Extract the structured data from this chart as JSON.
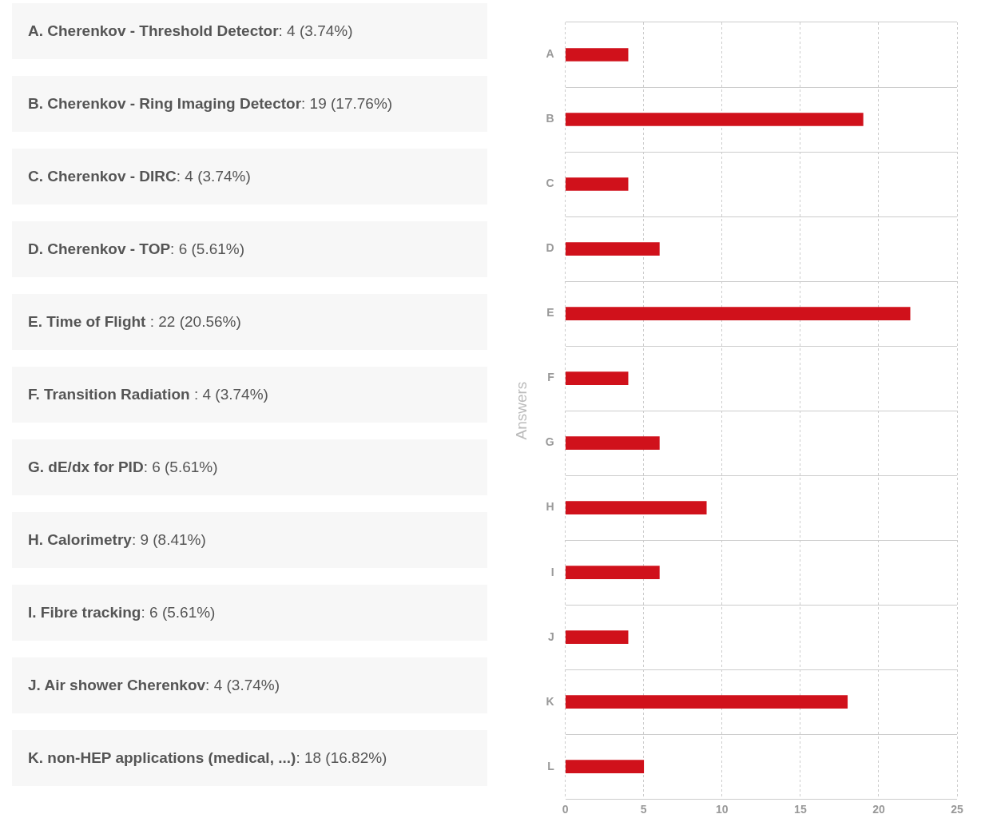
{
  "chart_data": [
    {
      "type": "other",
      "annotations": [
        "A. Cherenkov - Threshold Detector: 4 (3.74%)",
        "B. Cherenkov - Ring Imaging Detector: 19 (17.76%)",
        "C. Cherenkov - DIRC: 4 (3.74%)",
        "D. Cherenkov - TOP: 6 (5.61%)",
        "E. Time of Flight : 22 (20.56%)",
        "F. Transition Radiation : 4 (3.74%)",
        "G. dE/dx for PID: 6 (5.61%)",
        "H. Calorimetry: 9 (8.41%)",
        "I. Fibre tracking: 6 (5.61%)",
        "J. Air shower Cherenkov: 4 (3.74%)",
        "K. non-HEP applications (medical, ...): 18 (16.82%)"
      ]
    },
    {
      "type": "bar",
      "orientation": "horizontal",
      "ylabel": "Answers",
      "categories": [
        "A",
        "B",
        "C",
        "D",
        "E",
        "F",
        "G",
        "H",
        "I",
        "J",
        "K",
        "L"
      ],
      "values": [
        4,
        19,
        4,
        6,
        22,
        4,
        6,
        9,
        6,
        4,
        18,
        5
      ],
      "color": "#d0111b",
      "xlim": [
        0,
        25
      ],
      "xticks": [
        0,
        5,
        10,
        15,
        20,
        25
      ],
      "grid": true
    }
  ]
}
